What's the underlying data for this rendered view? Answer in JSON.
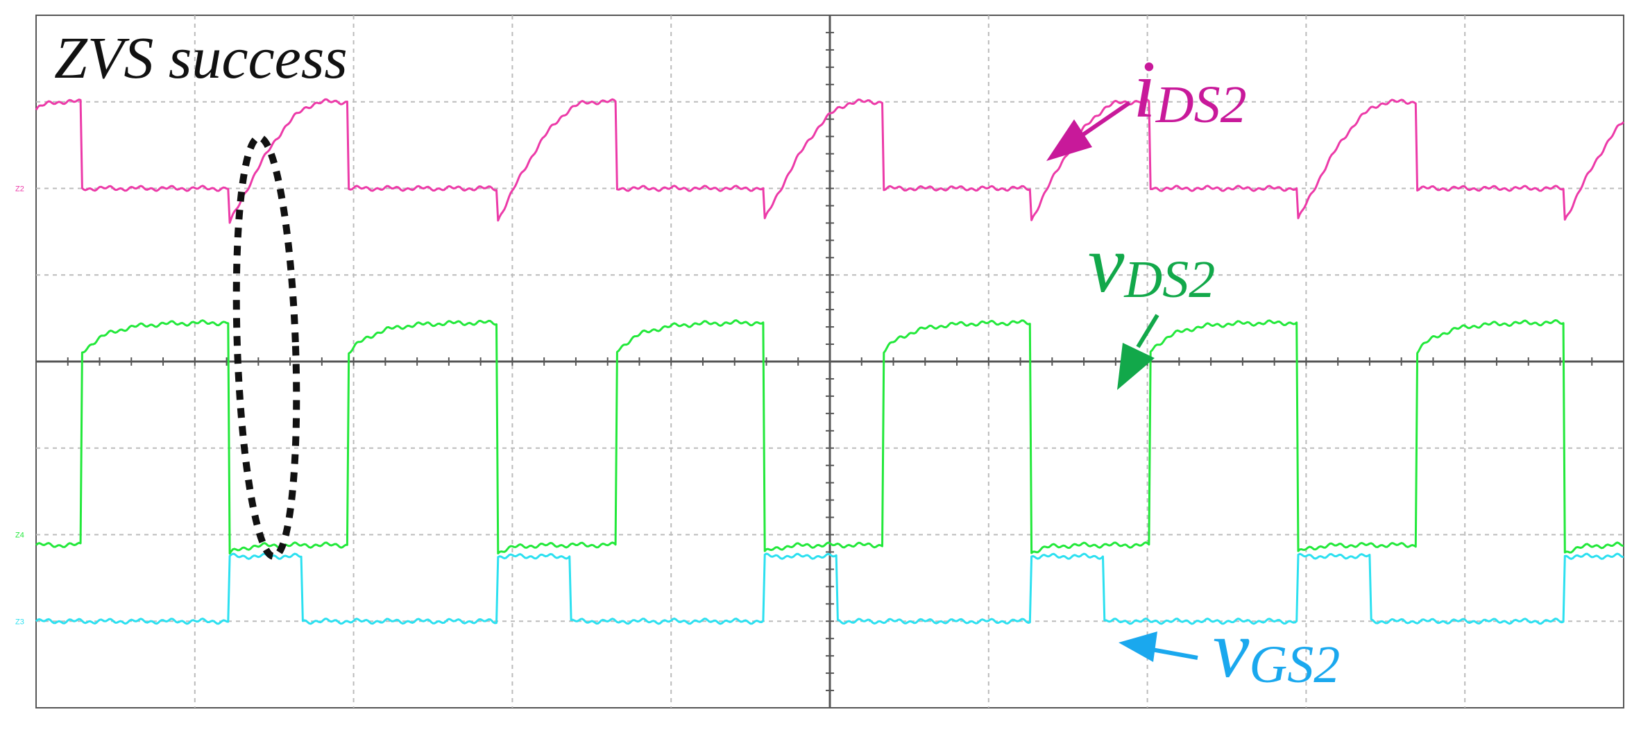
{
  "chart_data": {
    "type": "line",
    "title": "",
    "annotation_text": "ZVS success",
    "grid": true,
    "xlabel": "",
    "ylabel": "",
    "x_divisions": 10,
    "y_divisions": 8,
    "period_div": 1.68,
    "series": [
      {
        "name_main": "i",
        "name_sub": "DS2",
        "color": "#ec3aa8",
        "label_color": "#c8199a",
        "channel_marker": "Z2",
        "offset_div": 6.0,
        "waveform": "current",
        "events_div": [
          {
            "rise": 1.22,
            "fall": 0.29,
            "neg_dip": -0.4,
            "plateau": 1.0
          }
        ]
      },
      {
        "name_main": "v",
        "name_sub": "DS2",
        "color": "#22e83a",
        "label_color": "#12a84a",
        "channel_marker": "Z4",
        "offset_div": 2.0,
        "waveform": "square",
        "high_div": 2.45,
        "low_div": -0.12,
        "high_phase_start": 0.29,
        "high_phase_end": 1.22
      },
      {
        "name_main": "v",
        "name_sub": "GS2",
        "color": "#2ce0f0",
        "label_color": "#1aa8ee",
        "channel_marker": "Z3",
        "offset_div": 1.0,
        "waveform": "square",
        "high_div": 0.75,
        "low_div": 0.0,
        "high_phase_start": 1.22,
        "high_phase_end": 1.97
      }
    ]
  }
}
